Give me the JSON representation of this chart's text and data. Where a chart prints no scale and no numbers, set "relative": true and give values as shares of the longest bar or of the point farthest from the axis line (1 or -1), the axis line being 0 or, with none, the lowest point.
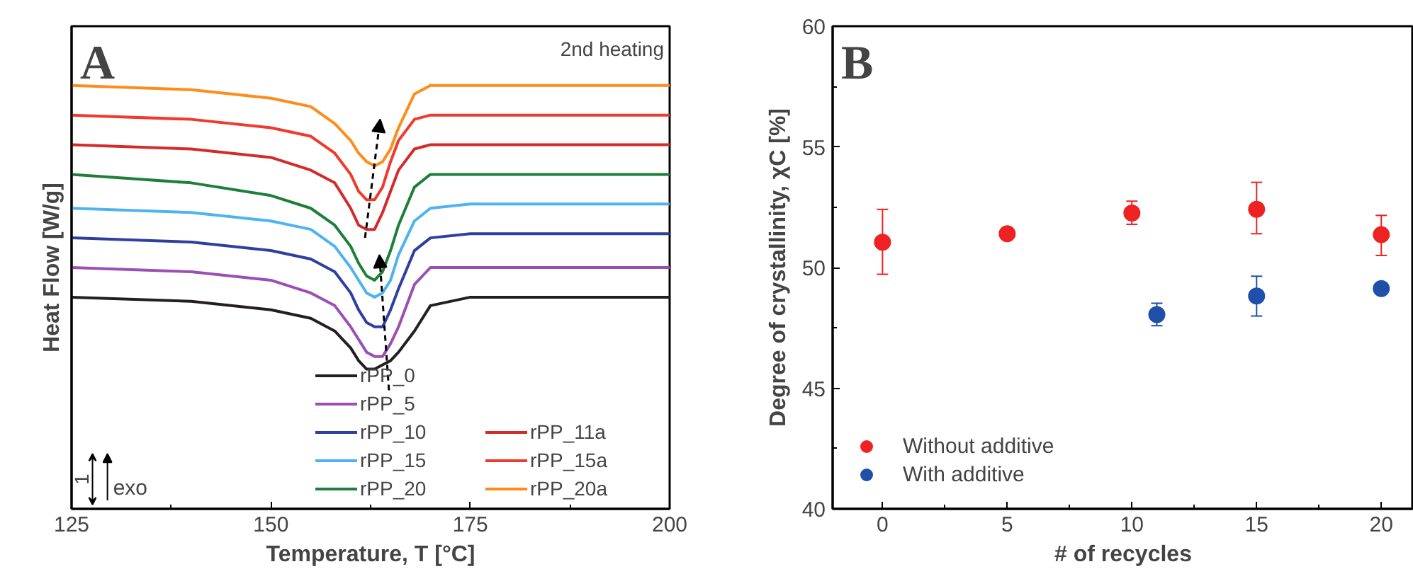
{
  "chart_data": [
    {
      "type": "line",
      "title": "A",
      "xlabel": "Temperature, T [°C]",
      "ylabel": "Heat Flow [W/g]",
      "relative": true,
      "tick_labels": "x",
      "xlim": [
        125,
        200
      ],
      "xticks": [
        125,
        150,
        175,
        200
      ],
      "grid": false,
      "legend": "bottom right",
      "line_style": "solid",
      "marker": "none",
      "annotations": [
        "2nd heating",
        "1",
        "exo"
      ],
      "x": [
        125,
        140,
        150,
        155,
        158,
        160,
        161,
        162,
        163,
        164,
        165,
        166,
        168,
        170,
        175,
        200
      ],
      "series": [
        {
          "name": "rPP_0",
          "color": "#231f20",
          "values": [
            0.5,
            0.49,
            0.47,
            0.45,
            0.42,
            0.38,
            0.35,
            0.33,
            0.33,
            0.34,
            0.35,
            0.37,
            0.42,
            0.48,
            0.5,
            0.5
          ]
        },
        {
          "name": "rPP_5",
          "color": "#9b4fb5",
          "values": [
            0.57,
            0.56,
            0.54,
            0.51,
            0.48,
            0.43,
            0.4,
            0.37,
            0.36,
            0.36,
            0.39,
            0.43,
            0.53,
            0.57,
            0.57,
            0.57
          ]
        },
        {
          "name": "rPP_10",
          "color": "#2e3fa0",
          "values": [
            0.64,
            0.63,
            0.61,
            0.59,
            0.56,
            0.51,
            0.47,
            0.44,
            0.43,
            0.43,
            0.47,
            0.52,
            0.61,
            0.64,
            0.65,
            0.65
          ]
        },
        {
          "name": "rPP_15",
          "color": "#4fb3f0",
          "values": [
            0.71,
            0.7,
            0.68,
            0.66,
            0.62,
            0.57,
            0.54,
            0.51,
            0.5,
            0.51,
            0.54,
            0.6,
            0.68,
            0.71,
            0.72,
            0.72
          ]
        },
        {
          "name": "rPP_20",
          "color": "#1e7f3a",
          "values": [
            0.79,
            0.77,
            0.74,
            0.71,
            0.67,
            0.62,
            0.58,
            0.55,
            0.54,
            0.56,
            0.61,
            0.67,
            0.76,
            0.79,
            0.79,
            0.79
          ]
        },
        {
          "name": "rPP_11a",
          "color": "#d42a2a",
          "values": [
            0.86,
            0.85,
            0.83,
            0.8,
            0.77,
            0.71,
            0.67,
            0.66,
            0.66,
            0.7,
            0.75,
            0.8,
            0.85,
            0.86,
            0.86,
            0.86
          ]
        },
        {
          "name": "rPP_15a",
          "color": "#f03a2e",
          "values": [
            0.93,
            0.92,
            0.9,
            0.88,
            0.84,
            0.79,
            0.75,
            0.73,
            0.73,
            0.76,
            0.82,
            0.87,
            0.92,
            0.93,
            0.93,
            0.93
          ]
        },
        {
          "name": "rPP_20a",
          "color": "#ff8c1a",
          "values": [
            1.0,
            0.99,
            0.97,
            0.95,
            0.91,
            0.87,
            0.84,
            0.82,
            0.81,
            0.82,
            0.85,
            0.9,
            0.98,
            1.0,
            1.0,
            1.0
          ]
        }
      ]
    },
    {
      "type": "scatter",
      "title": "B",
      "xlabel": "# of recycles",
      "ylabel": "Degree of crystallinity, χC [%]",
      "xlim": [
        -2,
        21.3
      ],
      "xticks": [
        0,
        5,
        10,
        15,
        20
      ],
      "ylim": [
        40,
        60
      ],
      "yticks": [
        40,
        45,
        50,
        55,
        60
      ],
      "grid": false,
      "legend": "bottom left",
      "marker": "circle",
      "series": [
        {
          "name": "Without additive",
          "color": "#ee2222",
          "x": [
            0,
            5,
            10,
            15,
            20
          ],
          "values": [
            51.05,
            51.4,
            52.26,
            52.41,
            51.36
          ],
          "errors": [
            [
              49.72,
              52.41
            ],
            null,
            [
              51.79,
              52.75
            ],
            [
              51.4,
              53.53
            ],
            [
              50.5,
              52.16
            ]
          ]
        },
        {
          "name": "With additive",
          "color": "#1f4fa8",
          "x": [
            11,
            15,
            20
          ],
          "values": [
            48.05,
            48.82,
            49.13
          ],
          "errors": [
            [
              47.59,
              48.52
            ],
            [
              47.99,
              49.64
            ],
            null
          ]
        }
      ]
    }
  ]
}
